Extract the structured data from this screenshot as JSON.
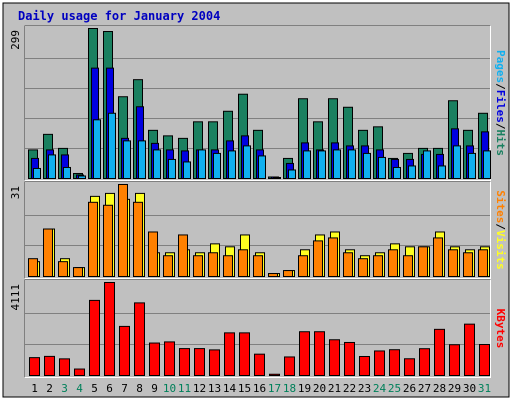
{
  "chart_data": {
    "type": "bar",
    "title": "Daily usage for January 2004",
    "categories": [
      "1",
      "2",
      "3",
      "4",
      "5",
      "6",
      "7",
      "8",
      "9",
      "10",
      "11",
      "12",
      "13",
      "14",
      "15",
      "16",
      "17",
      "18",
      "19",
      "20",
      "21",
      "22",
      "23",
      "24",
      "25",
      "26",
      "27",
      "28",
      "29",
      "30",
      "31"
    ],
    "weekend_days": [
      "3",
      "4",
      "10",
      "11",
      "17",
      "18",
      "24",
      "25",
      "31"
    ],
    "colors": {
      "background": "#ffffff",
      "panel": "#c0c0c0",
      "title": "#0000c0",
      "hits": "#1a8060",
      "files": "#0000e0",
      "pages": "#10b0f0",
      "visits": "#ffff20",
      "sites": "#ff8000",
      "kbytes": "#ff0000",
      "weekday_label": "#000000",
      "weekend_label": "#00805a",
      "grid": "#808080"
    },
    "panels": [
      {
        "name": "hits-files-pages",
        "ymax_label": "299",
        "ylim": [
          0,
          299
        ],
        "right_label": [
          {
            "text": "Pages",
            "color": "#10b0f0"
          },
          {
            "text": "/",
            "color": "#000000"
          },
          {
            "text": "Files",
            "color": "#0000e0"
          },
          {
            "text": "/",
            "color": "#000000"
          },
          {
            "text": "Hits",
            "color": "#1a8060"
          }
        ],
        "series": [
          {
            "name": "Hits",
            "color": "#1a8060",
            "values": [
              57,
              88,
              60,
              10,
              299,
              293,
              163,
              197,
              96,
              85,
              80,
              113,
              113,
              134,
              168,
              96,
              3,
              40,
              159,
              113,
              159,
              142,
              96,
              103,
              40,
              50,
              60,
              60,
              155,
              96,
              130
            ]
          },
          {
            "name": "Files",
            "color": "#0000e0",
            "values": [
              40,
              57,
              47,
              7,
              220,
              220,
              80,
              143,
              70,
              57,
              55,
              57,
              57,
              75,
              85,
              57,
              3,
              30,
              71,
              57,
              71,
              65,
              65,
              57,
              38,
              38,
              48,
              48,
              99,
              65,
              93
            ]
          },
          {
            "name": "Pages",
            "color": "#10b0f0",
            "values": [
              20,
              47,
              22,
              5,
              117,
              130,
              75,
              75,
              57,
              38,
              33,
              57,
              50,
              55,
              65,
              45,
              2,
              17,
              55,
              55,
              57,
              57,
              50,
              42,
              22,
              25,
              55,
              25,
              65,
              50,
              55
            ]
          }
        ]
      },
      {
        "name": "visits-sites",
        "ymax_label": "31",
        "ylim": [
          0,
          31
        ],
        "right_label": [
          {
            "text": "Sites",
            "color": "#ff8000"
          },
          {
            "text": "/",
            "color": "#000000"
          },
          {
            "text": "Visits",
            "color": "#ffff20"
          }
        ],
        "series": [
          {
            "name": "Visits",
            "color": "#ffff20",
            "values": [
              5,
              16,
              6,
              3,
              27,
              28,
              26,
              28,
              8,
              8,
              9,
              8,
              11,
              10,
              14,
              8,
              1,
              2,
              9,
              14,
              15,
              9,
              7,
              8,
              11,
              10,
              10,
              15,
              10,
              9,
              10
            ]
          },
          {
            "name": "Sites",
            "color": "#ff8000",
            "values": [
              6,
              16,
              5,
              3,
              25,
              24,
              31,
              25,
              15,
              7,
              14,
              7,
              8,
              7,
              9,
              7,
              1,
              2,
              7,
              12,
              13,
              8,
              6,
              7,
              9,
              7,
              10,
              13,
              9,
              8,
              9
            ]
          }
        ]
      },
      {
        "name": "kbytes",
        "ymax_label": "4111",
        "ylim": [
          0,
          4111
        ],
        "right_label": [
          {
            "text": "KBytes",
            "color": "#ff0000"
          }
        ],
        "series": [
          {
            "name": "KBytes",
            "color": "#ff0000",
            "values": [
              790,
              845,
              736,
              286,
              3320,
              4111,
              2170,
              3210,
              1435,
              1485,
              1190,
              1190,
              1132,
              1885,
              1885,
              943,
              55,
              820,
              1935,
              1935,
              1580,
              1460,
              840,
              1085,
              1140,
              740,
              1185,
              2040,
              1360,
              2270,
              1370
            ]
          }
        ]
      }
    ]
  }
}
